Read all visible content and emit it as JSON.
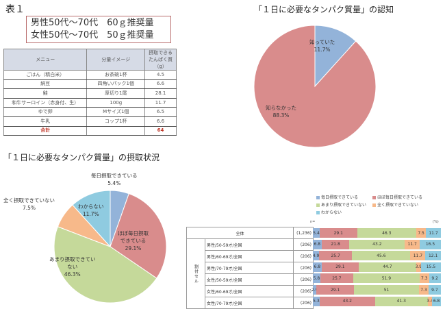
{
  "table1": {
    "title": "表１",
    "recommendation": {
      "male": "男性50代～70代　60ｇ推奨量",
      "female": "女性50代～70代　50ｇ推奨量"
    },
    "headers": [
      "メニュー",
      "分量イメージ",
      "摂取できる\nたんぱく質（g）"
    ],
    "rows": [
      {
        "menu": "ごはん（精白米）",
        "portion": "お茶碗1杯",
        "protein": "4.5"
      },
      {
        "menu": "納豆",
        "portion": "四角いパック1個",
        "protein": "6.6"
      },
      {
        "menu": "鮭",
        "portion": "厚切り1尾",
        "protein": "28.1"
      },
      {
        "menu": "和牛サーロイン（赤身付、生）",
        "portion": "100g",
        "protein": "11.7"
      },
      {
        "menu": "ゆで卵",
        "portion": "Mサイズ1個",
        "protein": "6.5"
      },
      {
        "menu": "牛乳",
        "portion": "コップ1杯",
        "protein": "6.6"
      }
    ],
    "total": {
      "menu": "合計",
      "portion": "",
      "protein": "64"
    }
  },
  "colors": {
    "blue": "#93b3d9",
    "red": "#d98c8c",
    "green": "#c5d99a",
    "orange": "#f7b98a",
    "lightblue": "#8fcbe0",
    "box_border": "#b86a6a",
    "total_red": "#c0392b"
  },
  "chart_data": [
    {
      "type": "pie",
      "title": "「１日に必要なタンパク質量」の認知",
      "categories": [
        "知っていた",
        "知らなかった"
      ],
      "values": [
        11.7,
        88.3
      ],
      "labels": [
        "知っていた\n11.7%",
        "知らなかった\n88.3%"
      ],
      "colors": [
        "#93b3d9",
        "#d98c8c"
      ]
    },
    {
      "type": "pie",
      "title": "「１日に必要なタンパク質量」の摂取状況",
      "categories": [
        "毎日摂取できている",
        "ほぼ毎日摂取できている",
        "あまり摂取できていない",
        "全く摂取できていない",
        "わからない"
      ],
      "values": [
        5.4,
        29.1,
        46.3,
        7.5,
        11.7
      ],
      "labels": [
        "毎日摂取できている\n5.4%",
        "ほぼ毎日摂取\nできている\n29.1%",
        "あまり摂取できてい\nない\n46.3%",
        "全く摂取できていない\n7.5%",
        "わからない\n11.7%"
      ],
      "colors": [
        "#93b3d9",
        "#d98c8c",
        "#c5d99a",
        "#f7b98a",
        "#8fcbe0"
      ]
    },
    {
      "type": "bar",
      "stacked": true,
      "orientation": "horizontal",
      "unit": "(%)",
      "n_label": "n=",
      "legend": [
        "毎日摂取できている",
        "ほぼ毎日摂取できている",
        "あまり摂取できていない",
        "全く摂取できていない",
        "わからない"
      ],
      "group_label": "割付セル",
      "categories": [
        "全体",
        "男性/50-59才/全国",
        "男性/60-69才/全国",
        "男性/70-79才/全国",
        "女性/50-59才/全国",
        "女性/60-69才/全国",
        "女性/70-79才/全国"
      ],
      "n": [
        "(1,236)",
        "(206)",
        "(206)",
        "(206)",
        "(206)",
        "(206)",
        "(206)"
      ],
      "series": [
        {
          "name": "毎日摂取できている",
          "values": [
            5.4,
            6.8,
            4.9,
            6.8,
            5.8,
            2.9,
            5.3
          ]
        },
        {
          "name": "ほぼ毎日摂取できている",
          "values": [
            29.1,
            21.8,
            25.7,
            29.1,
            25.7,
            29.1,
            43.2
          ]
        },
        {
          "name": "あまり摂取できていない",
          "values": [
            46.3,
            43.2,
            45.6,
            44.7,
            51.9,
            51.0,
            41.3
          ]
        },
        {
          "name": "全く摂取できていない",
          "values": [
            7.5,
            11.7,
            11.7,
            3.9,
            7.3,
            7.3,
            3.4
          ]
        },
        {
          "name": "わからない",
          "values": [
            11.7,
            16.5,
            12.1,
            15.5,
            9.2,
            9.7,
            6.8
          ]
        }
      ],
      "xlim": [
        0,
        100
      ]
    }
  ]
}
